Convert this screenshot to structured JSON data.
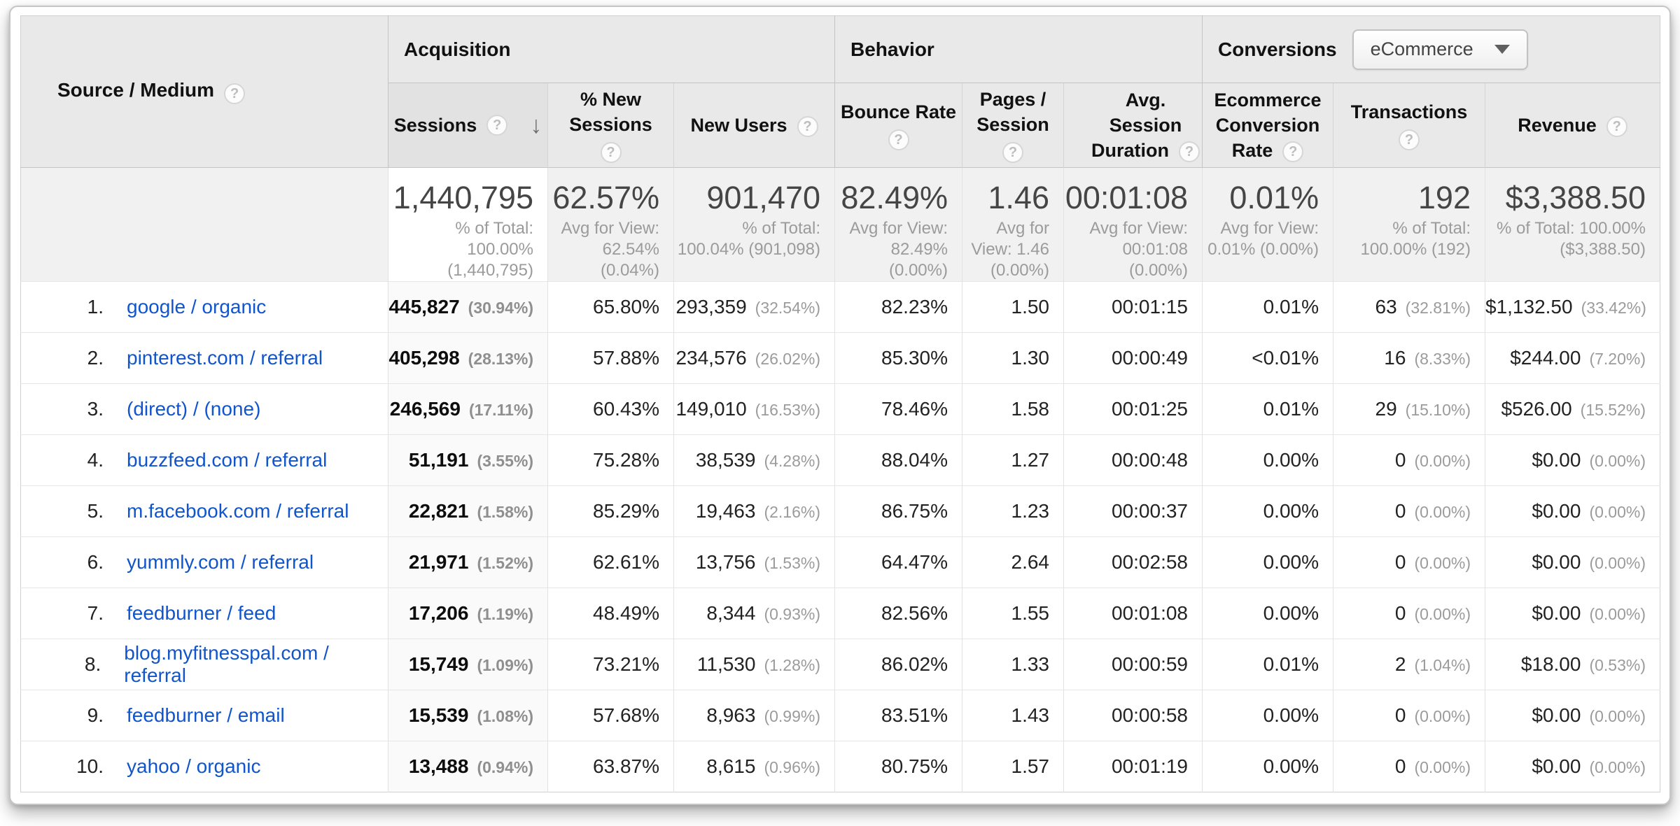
{
  "help_glyph": "?",
  "sort_arrow_glyph": "↓",
  "colors": {
    "link_blue": "#1155cc",
    "header_gray": "#e9e9e9",
    "summary_gray": "#f1f1f1",
    "muted_gray": "#9b9b9b"
  },
  "header": {
    "dimension": {
      "label": "Source / Medium"
    },
    "sections": {
      "acquisition": "Acquisition",
      "behavior": "Behavior",
      "conversions": "Conversions"
    },
    "conversions_selector_value": "eCommerce",
    "metrics": {
      "sessions": "Sessions",
      "new_sessions_l1": "% New",
      "new_sessions_l2": "Sessions",
      "new_users": "New Users",
      "bounce_rate": "Bounce Rate",
      "pages_l1": "Pages /",
      "pages_l2": "Session",
      "avg_l1": "Avg. Session",
      "avg_l2": "Duration",
      "ecr_l1": "Ecommerce",
      "ecr_l2": "Conversion",
      "ecr_l3": "Rate",
      "transactions": "Transactions",
      "revenue": "Revenue"
    }
  },
  "summary": {
    "sessions": {
      "value": "1,440,795",
      "sub": "% of Total:\n100.00%\n(1,440,795)"
    },
    "new_sessions": {
      "value": "62.57%",
      "sub": "Avg for View:\n62.54%\n(0.04%)"
    },
    "new_users": {
      "value": "901,470",
      "sub": "% of Total:\n100.04% (901,098)"
    },
    "bounce_rate": {
      "value": "82.49%",
      "sub": "Avg for View:\n82.49%\n(0.00%)"
    },
    "pages": {
      "value": "1.46",
      "sub": "Avg for\nView: 1.46\n(0.00%)"
    },
    "duration": {
      "value": "00:01:08",
      "sub": "Avg for View:\n00:01:08\n(0.00%)"
    },
    "ecr": {
      "value": "0.01%",
      "sub": "Avg for View:\n0.01% (0.00%)"
    },
    "transactions": {
      "value": "192",
      "sub": "% of Total:\n100.00% (192)"
    },
    "revenue": {
      "value": "$3,388.50",
      "sub": "% of Total: 100.00%\n($3,388.50)"
    }
  },
  "rows": [
    {
      "num": "1.",
      "source": "google / organic",
      "sessions": "445,827",
      "sessions_pct": "(30.94%)",
      "new_sessions": "65.80%",
      "new_users": "293,359",
      "new_users_pct": "(32.54%)",
      "bounce": "82.23%",
      "pages": "1.50",
      "duration": "00:01:15",
      "ecr": "0.01%",
      "transactions": "63",
      "transactions_pct": "(32.81%)",
      "revenue": "$1,132.50",
      "revenue_pct": "(33.42%)"
    },
    {
      "num": "2.",
      "source": "pinterest.com / referral",
      "sessions": "405,298",
      "sessions_pct": "(28.13%)",
      "new_sessions": "57.88%",
      "new_users": "234,576",
      "new_users_pct": "(26.02%)",
      "bounce": "85.30%",
      "pages": "1.30",
      "duration": "00:00:49",
      "ecr": "<0.01%",
      "transactions": "16",
      "transactions_pct": "(8.33%)",
      "revenue": "$244.00",
      "revenue_pct": "(7.20%)"
    },
    {
      "num": "3.",
      "source": "(direct) / (none)",
      "sessions": "246,569",
      "sessions_pct": "(17.11%)",
      "new_sessions": "60.43%",
      "new_users": "149,010",
      "new_users_pct": "(16.53%)",
      "bounce": "78.46%",
      "pages": "1.58",
      "duration": "00:01:25",
      "ecr": "0.01%",
      "transactions": "29",
      "transactions_pct": "(15.10%)",
      "revenue": "$526.00",
      "revenue_pct": "(15.52%)"
    },
    {
      "num": "4.",
      "source": "buzzfeed.com / referral",
      "sessions": "51,191",
      "sessions_pct": "(3.55%)",
      "new_sessions": "75.28%",
      "new_users": "38,539",
      "new_users_pct": "(4.28%)",
      "bounce": "88.04%",
      "pages": "1.27",
      "duration": "00:00:48",
      "ecr": "0.00%",
      "transactions": "0",
      "transactions_pct": "(0.00%)",
      "revenue": "$0.00",
      "revenue_pct": "(0.00%)"
    },
    {
      "num": "5.",
      "source": "m.facebook.com / referral",
      "sessions": "22,821",
      "sessions_pct": "(1.58%)",
      "new_sessions": "85.29%",
      "new_users": "19,463",
      "new_users_pct": "(2.16%)",
      "bounce": "86.75%",
      "pages": "1.23",
      "duration": "00:00:37",
      "ecr": "0.00%",
      "transactions": "0",
      "transactions_pct": "(0.00%)",
      "revenue": "$0.00",
      "revenue_pct": "(0.00%)"
    },
    {
      "num": "6.",
      "source": "yummly.com / referral",
      "sessions": "21,971",
      "sessions_pct": "(1.52%)",
      "new_sessions": "62.61%",
      "new_users": "13,756",
      "new_users_pct": "(1.53%)",
      "bounce": "64.47%",
      "pages": "2.64",
      "duration": "00:02:58",
      "ecr": "0.00%",
      "transactions": "0",
      "transactions_pct": "(0.00%)",
      "revenue": "$0.00",
      "revenue_pct": "(0.00%)"
    },
    {
      "num": "7.",
      "source": "feedburner / feed",
      "sessions": "17,206",
      "sessions_pct": "(1.19%)",
      "new_sessions": "48.49%",
      "new_users": "8,344",
      "new_users_pct": "(0.93%)",
      "bounce": "82.56%",
      "pages": "1.55",
      "duration": "00:01:08",
      "ecr": "0.00%",
      "transactions": "0",
      "transactions_pct": "(0.00%)",
      "revenue": "$0.00",
      "revenue_pct": "(0.00%)"
    },
    {
      "num": "8.",
      "source": "blog.myfitnesspal.com / referral",
      "sessions": "15,749",
      "sessions_pct": "(1.09%)",
      "new_sessions": "73.21%",
      "new_users": "11,530",
      "new_users_pct": "(1.28%)",
      "bounce": "86.02%",
      "pages": "1.33",
      "duration": "00:00:59",
      "ecr": "0.01%",
      "transactions": "2",
      "transactions_pct": "(1.04%)",
      "revenue": "$18.00",
      "revenue_pct": "(0.53%)"
    },
    {
      "num": "9.",
      "source": "feedburner / email",
      "sessions": "15,539",
      "sessions_pct": "(1.08%)",
      "new_sessions": "57.68%",
      "new_users": "8,963",
      "new_users_pct": "(0.99%)",
      "bounce": "83.51%",
      "pages": "1.43",
      "duration": "00:00:58",
      "ecr": "0.00%",
      "transactions": "0",
      "transactions_pct": "(0.00%)",
      "revenue": "$0.00",
      "revenue_pct": "(0.00%)"
    },
    {
      "num": "10.",
      "source": "yahoo / organic",
      "sessions": "13,488",
      "sessions_pct": "(0.94%)",
      "new_sessions": "63.87%",
      "new_users": "8,615",
      "new_users_pct": "(0.96%)",
      "bounce": "80.75%",
      "pages": "1.57",
      "duration": "00:01:19",
      "ecr": "0.00%",
      "transactions": "0",
      "transactions_pct": "(0.00%)",
      "revenue": "$0.00",
      "revenue_pct": "(0.00%)"
    }
  ]
}
